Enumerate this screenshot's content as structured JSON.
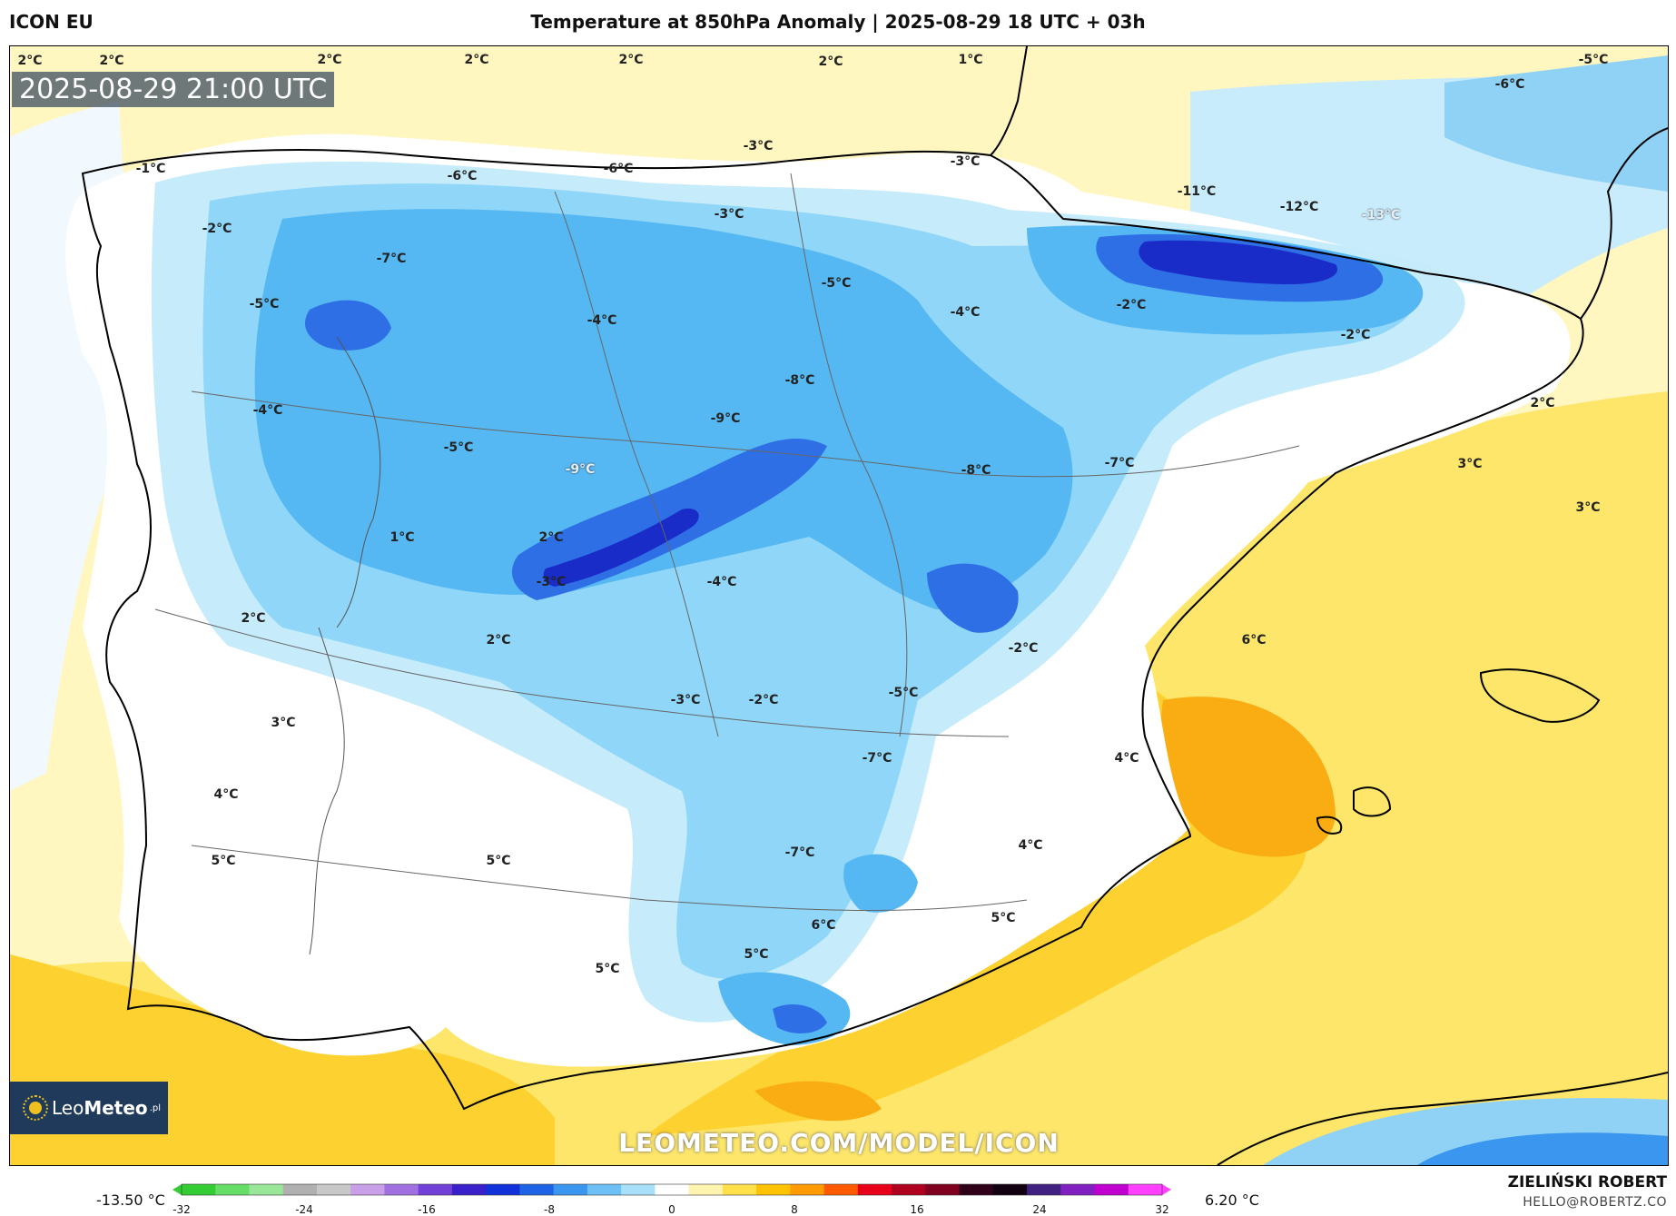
{
  "header": {
    "model": "ICON EU",
    "title": "Temperature at 850hPa Anomaly | 2025-08-29 18 UTC + 03h"
  },
  "map": {
    "timestamp": "2025-08-29 21:00 UTC",
    "watermark": "LEOMETEO.COM/MODEL/ICON",
    "labels": [
      {
        "text": "2°C"
      },
      {
        "text": "2°C"
      },
      {
        "text": "2°C"
      },
      {
        "text": "2°C"
      },
      {
        "text": "2°C"
      },
      {
        "text": "2°C"
      },
      {
        "text": "1°C"
      },
      {
        "text": "-5°C"
      },
      {
        "text": "-1°C"
      },
      {
        "text": "-6°C"
      },
      {
        "text": "-6°C"
      },
      {
        "text": "-3°C"
      },
      {
        "text": "-3°C"
      },
      {
        "text": "-3°C"
      },
      {
        "text": "-6°C"
      },
      {
        "text": "-2°C"
      },
      {
        "text": "-7°C"
      },
      {
        "text": "-5°C"
      },
      {
        "text": "-4°C"
      },
      {
        "text": "-5°C"
      },
      {
        "text": "-4°C"
      },
      {
        "text": "-11°C"
      },
      {
        "text": "-12°C"
      },
      {
        "text": "-13°C"
      },
      {
        "text": "-2°C"
      },
      {
        "text": "-2°C"
      },
      {
        "text": "-8°C"
      },
      {
        "text": "-4°C"
      },
      {
        "text": "-9°C"
      },
      {
        "text": "-5°C"
      },
      {
        "text": "-9°C"
      },
      {
        "text": "-8°C"
      },
      {
        "text": "-7°C"
      },
      {
        "text": "2°C"
      },
      {
        "text": "3°C"
      },
      {
        "text": "3°C"
      },
      {
        "text": "1°C"
      },
      {
        "text": "2°C"
      },
      {
        "text": "-3°C"
      },
      {
        "text": "-4°C"
      },
      {
        "text": "2°C"
      },
      {
        "text": "2°C"
      },
      {
        "text": "6°C"
      },
      {
        "text": "-2°C"
      },
      {
        "text": "-3°C"
      },
      {
        "text": "-2°C"
      },
      {
        "text": "-5°C"
      },
      {
        "text": "3°C"
      },
      {
        "text": "-7°C"
      },
      {
        "text": "4°C"
      },
      {
        "text": "4°C"
      },
      {
        "text": "5°C"
      },
      {
        "text": "5°C"
      },
      {
        "text": "-7°C"
      },
      {
        "text": "4°C"
      },
      {
        "text": "6°C"
      },
      {
        "text": "5°C"
      },
      {
        "text": "5°C"
      },
      {
        "text": "5°C"
      }
    ]
  },
  "logo": {
    "brand_a": "Leo",
    "brand_b": "Meteo",
    "suffix": ".pl"
  },
  "colorbar": {
    "min_label": "-13.50 °C",
    "max_label": "6.20 °C",
    "ticks": [
      "-32",
      "-24",
      "-16",
      "-8",
      "0",
      "8",
      "16",
      "24",
      "32"
    ],
    "range": [
      -32,
      32
    ],
    "colors": [
      "#33cc33",
      "#66dd66",
      "#99e699",
      "#b0b0b0",
      "#c8c8c8",
      "#c8a0e8",
      "#a070e0",
      "#7040d8",
      "#3a20c8",
      "#1030d8",
      "#1e63e6",
      "#3b96f0",
      "#6cc0f5",
      "#a8e0fa",
      "#ffffff",
      "#fff3b0",
      "#ffe04a",
      "#ffc200",
      "#ff9a00",
      "#ff5a00",
      "#e8001a",
      "#b00020",
      "#800020",
      "#300018",
      "#100010",
      "#402080",
      "#8020c0",
      "#c000d0",
      "#ff40ff"
    ]
  },
  "credits": {
    "author": "ZIELIŃSKI ROBERT",
    "email": "HELLO@ROBERTZ.CO"
  }
}
